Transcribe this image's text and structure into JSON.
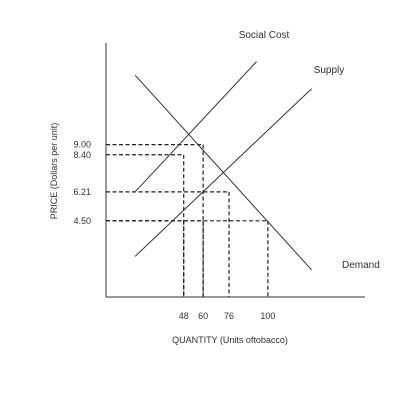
{
  "chart_data": {
    "type": "line",
    "title": "",
    "xlabel": "QUANTITY (Units oftobacco)",
    "ylabel": "PRICE (Dollars per unit)",
    "xlim": [
      0,
      160
    ],
    "ylim": [
      0,
      15
    ],
    "x_ticks": [
      48,
      60,
      76,
      100
    ],
    "x_tick_labels": [
      "48",
      "60",
      "76",
      "100"
    ],
    "y_ticks": [
      4.5,
      6.21,
      8.4,
      9.0
    ],
    "y_tick_labels": [
      "4.50",
      "6.21",
      "8.40",
      "9.00"
    ],
    "grid": false,
    "legend": "none",
    "series": [
      {
        "name": "Social Cost",
        "x": [
          18,
          93
        ],
        "y": [
          6.21,
          13.9
        ],
        "color": "#333333"
      },
      {
        "name": "Supply",
        "x": [
          18,
          127
        ],
        "y": [
          2.4,
          12.3
        ],
        "color": "#333333"
      },
      {
        "name": "Demand",
        "x": [
          18,
          127
        ],
        "y": [
          13.1,
          1.6
        ],
        "color": "#333333"
      }
    ],
    "reference_lines": [
      {
        "x": 48,
        "y": 8.4
      },
      {
        "x": 60,
        "y": 9.0
      },
      {
        "x": 76,
        "y": 6.21
      },
      {
        "x": 100,
        "y": 4.5
      },
      {
        "x": 48,
        "y": 4.5
      },
      {
        "x": 60,
        "y": 4.5
      }
    ]
  }
}
